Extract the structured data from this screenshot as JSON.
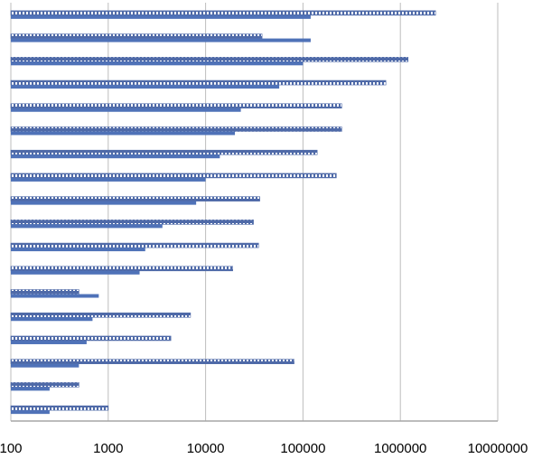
{
  "chart_data": {
    "type": "bar",
    "orientation": "horizontal",
    "title": "",
    "xlabel": "",
    "ylabel": "",
    "xscale": "log",
    "xlim": [
      100,
      10000000
    ],
    "xticks": [
      "100",
      "1000",
      "10000",
      "100000",
      "1000000",
      "10000000"
    ],
    "xtick_values": [
      100,
      1000,
      10000,
      100000,
      1000000,
      10000000
    ],
    "grid": true,
    "legend": "none",
    "series": [
      {
        "name": "patterned",
        "style": "pattern",
        "values": [
          2300000,
          38000,
          1200000,
          710000,
          250000,
          250000,
          140000,
          220000,
          36000,
          31000,
          35000,
          19000,
          500,
          7000,
          4400,
          81000,
          500,
          1000
        ]
      },
      {
        "name": "solid",
        "style": "solid",
        "values": [
          120000,
          120000,
          100000,
          57000,
          23000,
          20000,
          14000,
          10000,
          8000,
          3600,
          2400,
          2100,
          800,
          690,
          600,
          500,
          250,
          250
        ]
      }
    ],
    "colors": {
      "solid": "#4f72b8",
      "pattern_border": "#4f6aa8",
      "grid": "#bdbdbd",
      "axis": "#a6a6a6"
    }
  }
}
